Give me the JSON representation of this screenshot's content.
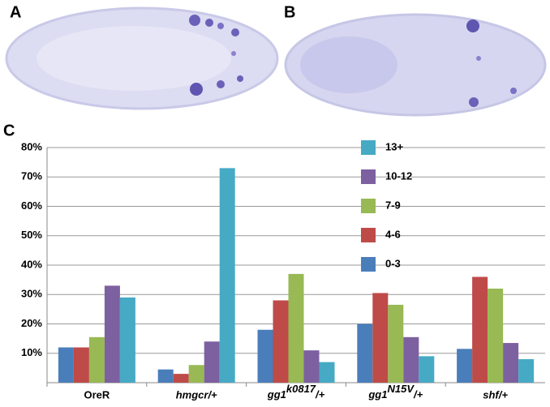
{
  "panel_labels": [
    "A",
    "B",
    "C"
  ],
  "chart_data": {
    "type": "bar",
    "categories": [
      "OreR",
      "hmgcr/+",
      [
        "gg1",
        "k0817",
        "/+"
      ],
      [
        "gg1",
        "N15V",
        "/+"
      ],
      "shf/+"
    ],
    "series": [
      {
        "name": "0-3",
        "color": "#4a7ebb",
        "values": [
          12,
          4.5,
          18,
          20,
          11.5
        ]
      },
      {
        "name": "4-6",
        "color": "#be4b48",
        "values": [
          12,
          3,
          28,
          30.5,
          36
        ]
      },
      {
        "name": "7-9",
        "color": "#98b954",
        "values": [
          15.5,
          6,
          37,
          26.5,
          32
        ]
      },
      {
        "name": "10-12",
        "color": "#7d60a0",
        "values": [
          33,
          14,
          11,
          15.5,
          13.5
        ]
      },
      {
        "name": "13+",
        "color": "#46aac5",
        "values": [
          29,
          73,
          7,
          9,
          8
        ]
      }
    ],
    "ylim": [
      0,
      80
    ],
    "yticks": [
      {
        "value": 10,
        "label": "10%"
      },
      {
        "value": 20,
        "label": "20%"
      },
      {
        "value": 30,
        "label": "30%"
      },
      {
        "value": 40,
        "label": "40%"
      },
      {
        "value": 50,
        "label": "50%"
      },
      {
        "value": 60,
        "label": "60%"
      },
      {
        "value": 70,
        "label": "70%"
      },
      {
        "value": 80,
        "label": "80%"
      }
    ],
    "grid": true,
    "legend": "upper-center"
  }
}
